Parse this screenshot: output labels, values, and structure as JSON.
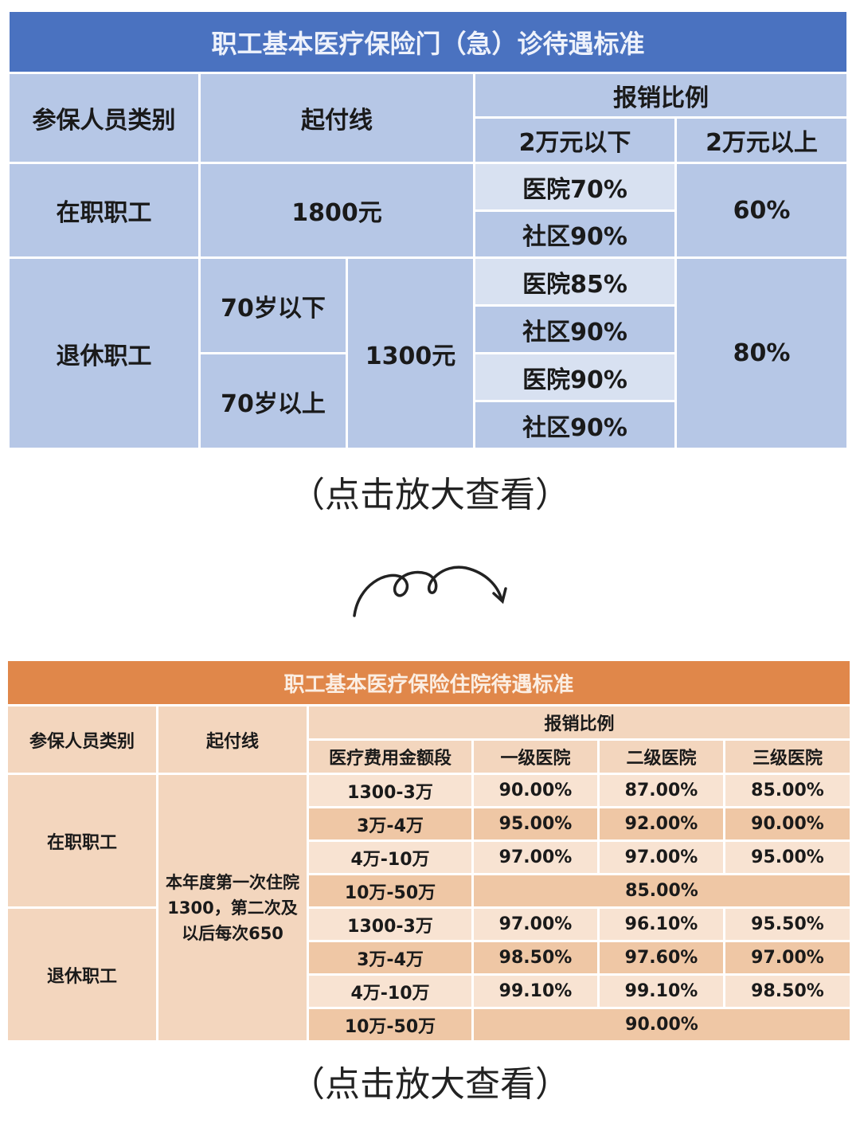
{
  "outpatient": {
    "title": "职工基本医疗保险门（急）诊待遇标准",
    "headers": {
      "category": "参保人员类别",
      "deductible": "起付线",
      "ratio": "报销比例",
      "below": "2万元以下",
      "above": "2万元以上"
    },
    "employed": {
      "label": "在职职工",
      "deductible": "1800元",
      "hospital": "医院70%",
      "community": "社区90%",
      "above": "60%"
    },
    "retired": {
      "label": "退休职工",
      "under70": "70岁以下",
      "over70": "70岁以上",
      "deductible": "1300元",
      "under70_hospital": "医院85%",
      "under70_community": "社区90%",
      "over70_hospital": "医院90%",
      "over70_community": "社区90%",
      "above": "80%"
    },
    "header_color": "#4a72c0",
    "cell_color": "#b6c7e6"
  },
  "note": "（点击放大查看）",
  "arrow_icon": "curly-arrow-icon",
  "inpatient": {
    "title": "职工基本医疗保险住院待遇标准",
    "headers": {
      "category": "参保人员类别",
      "deductible": "起付线",
      "ratio": "报销比例",
      "segment": "医疗费用金额段",
      "level1": "一级医院",
      "level2": "二级医院",
      "level3": "三级医院"
    },
    "deductible": "本年度第一次住院1300，第二次及以后每次650",
    "employed": {
      "label": "在职职工",
      "rows": [
        {
          "segment": "1300-3万",
          "l1": "90.00%",
          "l2": "87.00%",
          "l3": "85.00%"
        },
        {
          "segment": "3万-4万",
          "l1": "95.00%",
          "l2": "92.00%",
          "l3": "90.00%"
        },
        {
          "segment": "4万-10万",
          "l1": "97.00%",
          "l2": "97.00%",
          "l3": "95.00%"
        },
        {
          "segment": "10万-50万",
          "all": "85.00%"
        }
      ]
    },
    "retired": {
      "label": "退休职工",
      "rows": [
        {
          "segment": "1300-3万",
          "l1": "97.00%",
          "l2": "96.10%",
          "l3": "95.50%"
        },
        {
          "segment": "3万-4万",
          "l1": "98.50%",
          "l2": "97.60%",
          "l3": "97.00%"
        },
        {
          "segment": "4万-10万",
          "l1": "99.10%",
          "l2": "99.10%",
          "l3": "98.50%"
        },
        {
          "segment": "10万-50万",
          "all": "90.00%"
        }
      ]
    },
    "header_color": "#e0874a",
    "cell_color": "#f3d6be"
  }
}
